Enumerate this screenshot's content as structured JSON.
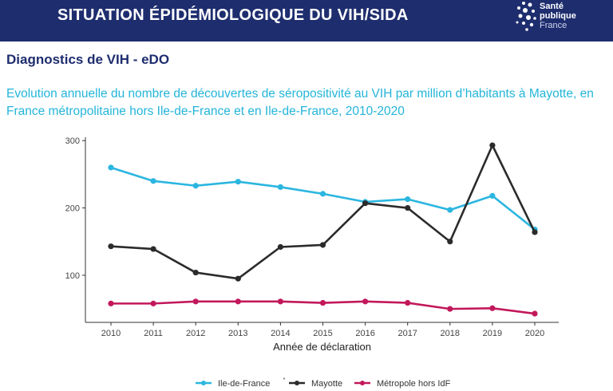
{
  "header": {
    "title": "SITUATION ÉPIDÉMIOLOGIQUE DU VIH/SIDA",
    "logo_lines": [
      "Santé",
      "publique",
      "France"
    ]
  },
  "subtitle": "Diagnostics de VIH - eDO",
  "description": "Evolution annuelle du nombre de découvertes de séropositivité au VIH par million d’habitants à Mayotte, en France métropolitaine hors Ile-de-France et en Ile-de-France, 2010-2020",
  "colors": {
    "header_bg": "#1e2d6e",
    "accent": "#23b5d9"
  },
  "chart_data": {
    "type": "line",
    "x": [
      2010,
      2011,
      2012,
      2013,
      2014,
      2015,
      2016,
      2017,
      2018,
      2019,
      2020
    ],
    "xlabel": "Année de déclaration",
    "ylabel": "",
    "ylim": [
      30,
      305
    ],
    "yticks": [
      100,
      200,
      300
    ],
    "grid": false,
    "legend_position": "bottom",
    "series": [
      {
        "name": "Ile-de-France",
        "name_suffix": "*",
        "color": "#2bb6e0",
        "values": [
          260,
          240,
          233,
          239,
          231,
          221,
          209,
          213,
          197,
          218,
          168
        ]
      },
      {
        "name": "Mayotte",
        "color": "#2b2b2b",
        "values": [
          143,
          139,
          104,
          95,
          142,
          145,
          207,
          200,
          150,
          293,
          164
        ]
      },
      {
        "name": "Métropole hors IdF",
        "color": "#c2185b",
        "values": [
          58,
          58,
          61,
          61,
          61,
          59,
          61,
          59,
          50,
          51,
          43
        ]
      }
    ]
  }
}
